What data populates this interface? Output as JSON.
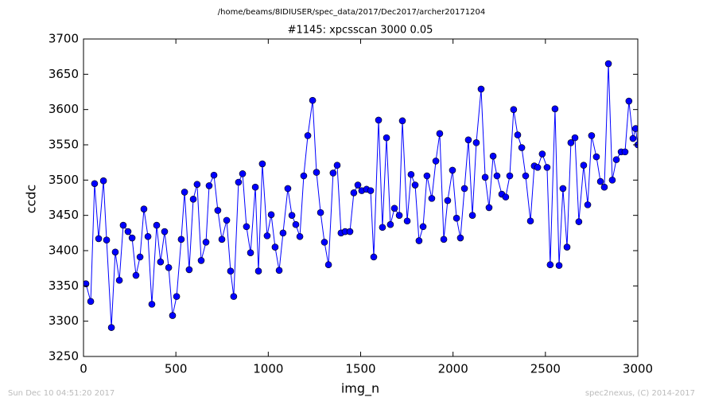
{
  "chart_data": {
    "type": "line",
    "path_title": "/home/beams/8IDIUSER/spec_data/2017/Dec2017/archer20171204",
    "title": "#1145: xpcsscan 3000 0.05",
    "x_label": "img_n",
    "y_label": "ccdc",
    "footer_left": "Sun Dec 10 04:51:20 2017",
    "footer_right": "spec2nexus, (C) 2014-2017",
    "color": "#0000ff",
    "x": [
      13,
      39,
      60,
      82,
      108,
      125,
      151,
      172,
      194,
      215,
      241,
      263,
      284,
      306,
      327,
      349,
      370,
      396,
      417,
      439,
      461,
      482,
      504,
      529,
      547,
      572,
      594,
      615,
      637,
      663,
      680,
      706,
      727,
      749,
      775,
      796,
      813,
      839,
      861,
      882,
      904,
      930,
      947,
      968,
      994,
      1016,
      1037,
      1059,
      1080,
      1106,
      1128,
      1149,
      1171,
      1192,
      1214,
      1240,
      1261,
      1283,
      1304,
      1326,
      1351,
      1373,
      1394,
      1416,
      1442,
      1463,
      1485,
      1506,
      1532,
      1554,
      1571,
      1597,
      1618,
      1640,
      1661,
      1683,
      1709,
      1726,
      1752,
      1773,
      1795,
      1816,
      1838,
      1859,
      1885,
      1907,
      1928,
      1950,
      1971,
      1997,
      2019,
      2040,
      2062,
      2083,
      2105,
      2126,
      2152,
      2174,
      2195,
      2217,
      2238,
      2264,
      2285,
      2307,
      2328,
      2350,
      2372,
      2393,
      2419,
      2440,
      2458,
      2483,
      2509,
      2526,
      2552,
      2574,
      2595,
      2617,
      2638,
      2660,
      2681,
      2707,
      2729,
      2750,
      2776,
      2798,
      2819,
      2841,
      2862,
      2884,
      2910,
      2931,
      2952,
      2974,
      2988,
      3000
    ],
    "values": [
      3353,
      3328,
      3495,
      3417,
      3499,
      3415,
      3291,
      3398,
      3358,
      3436,
      3427,
      3418,
      3365,
      3391,
      3459,
      3420,
      3324,
      3436,
      3384,
      3427,
      3376,
      3308,
      3335,
      3416,
      3483,
      3373,
      3473,
      3494,
      3386,
      3412,
      3492,
      3507,
      3457,
      3416,
      3443,
      3371,
      3335,
      3497,
      3509,
      3434,
      3397,
      3490,
      3371,
      3523,
      3421,
      3451,
      3405,
      3372,
      3425,
      3488,
      3450,
      3437,
      3420,
      3506,
      3563,
      3613,
      3511,
      3454,
      3412,
      3380,
      3510,
      3521,
      3425,
      3427,
      3427,
      3482,
      3493,
      3485,
      3487,
      3485,
      3391,
      3585,
      3433,
      3560,
      3437,
      3460,
      3450,
      3584,
      3442,
      3508,
      3493,
      3414,
      3434,
      3506,
      3474,
      3527,
      3566,
      3416,
      3471,
      3514,
      3446,
      3418,
      3488,
      3557,
      3450,
      3553,
      3629,
      3504,
      3461,
      3534,
      3506,
      3480,
      3476,
      3506,
      3600,
      3564,
      3546,
      3506,
      3442,
      3520,
      3518,
      3537,
      3518,
      3380,
      3601,
      3379,
      3488,
      3405,
      3553,
      3560,
      3441,
      3521,
      3465,
      3563,
      3533,
      3498,
      3490,
      3665,
      3500,
      3529,
      3540,
      3540,
      3612,
      3559,
      3573,
      3550
    ],
    "xlim": [
      0,
      3000
    ],
    "xticks": [
      0,
      500,
      1000,
      1500,
      2000,
      2500,
      3000
    ],
    "ylim": [
      3250,
      3700
    ],
    "yticks": [
      3250,
      3300,
      3350,
      3400,
      3450,
      3500,
      3550,
      3600,
      3650,
      3700
    ],
    "grid": false
  }
}
